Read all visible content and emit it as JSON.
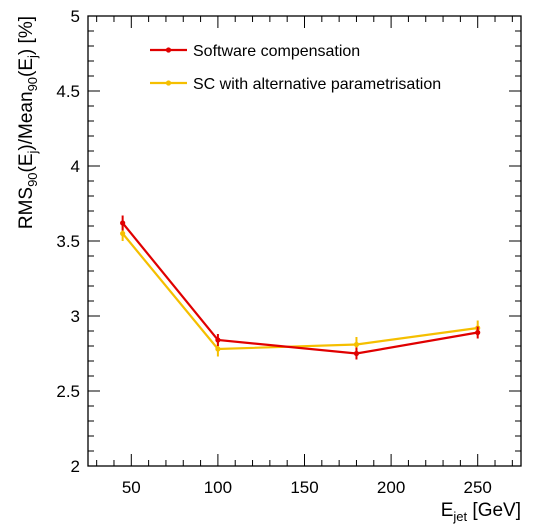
{
  "chart_data": {
    "type": "line",
    "x": [
      45,
      100,
      180,
      250
    ],
    "xlim": [
      25,
      275
    ],
    "ylim": [
      2,
      5
    ],
    "x_ticks": [
      50,
      100,
      150,
      200,
      250
    ],
    "y_ticks": [
      2,
      2.5,
      3,
      3.5,
      4,
      4.5,
      5
    ],
    "x_tick_labels": [
      "50",
      "100",
      "150",
      "200",
      "250"
    ],
    "y_tick_labels": [
      "2",
      "2.5",
      "3",
      "3.5",
      "4",
      "4.5",
      "5"
    ],
    "xlabel": {
      "main": "E",
      "sub": "jet",
      "rest": " [GeV]"
    },
    "ylabel": {
      "parts": [
        {
          "t": "RMS",
          "s": ""
        },
        {
          "t": "90",
          "s": "sub"
        },
        {
          "t": "(E",
          "s": ""
        },
        {
          "t": "j",
          "s": "sub"
        },
        {
          "t": ")/Mean",
          "s": ""
        },
        {
          "t": "90",
          "s": "sub"
        },
        {
          "t": "(E",
          "s": ""
        },
        {
          "t": "j",
          "s": "sub"
        },
        {
          "t": ") [%]",
          "s": ""
        }
      ]
    },
    "grid": false,
    "legend_position": "top",
    "series": [
      {
        "name": "Software compensation",
        "color": "#e00000",
        "values": [
          3.62,
          2.84,
          2.75,
          2.89
        ],
        "errors": [
          0.05,
          0.04,
          0.04,
          0.04
        ]
      },
      {
        "name": "SC with alternative parametrisation",
        "color": "#f5bf00",
        "values": [
          3.55,
          2.78,
          2.81,
          2.92
        ],
        "errors": [
          0.05,
          0.05,
          0.05,
          0.05
        ]
      }
    ]
  }
}
